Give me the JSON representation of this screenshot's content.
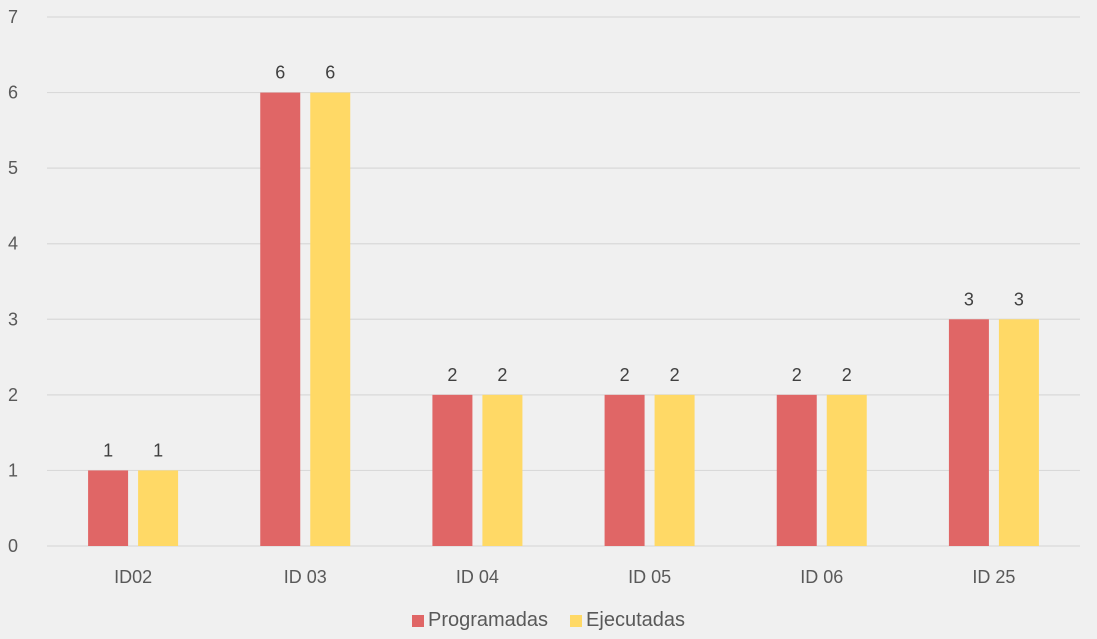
{
  "chart_data": {
    "type": "bar",
    "title": "",
    "xlabel": "",
    "ylabel": "",
    "categories": [
      "ID02",
      "ID 03",
      "ID 04",
      "ID 05",
      "ID 06",
      "ID 25"
    ],
    "series": [
      {
        "name": "Programadas",
        "values": [
          1,
          6,
          2,
          2,
          2,
          3
        ],
        "color": "#e06666"
      },
      {
        "name": "Ejecutadas",
        "values": [
          1,
          6,
          2,
          2,
          2,
          3
        ],
        "color": "#ffd966"
      }
    ],
    "ylim": [
      0,
      7
    ],
    "yticks": [
      "0",
      "1",
      "2",
      "3",
      "4",
      "5",
      "6",
      "7"
    ],
    "grid": true,
    "legend_position": "bottom",
    "data_labels": true
  },
  "colors": {
    "background": "#f0f0f0",
    "gridline": "#d9d9d9",
    "text": "#595959"
  }
}
